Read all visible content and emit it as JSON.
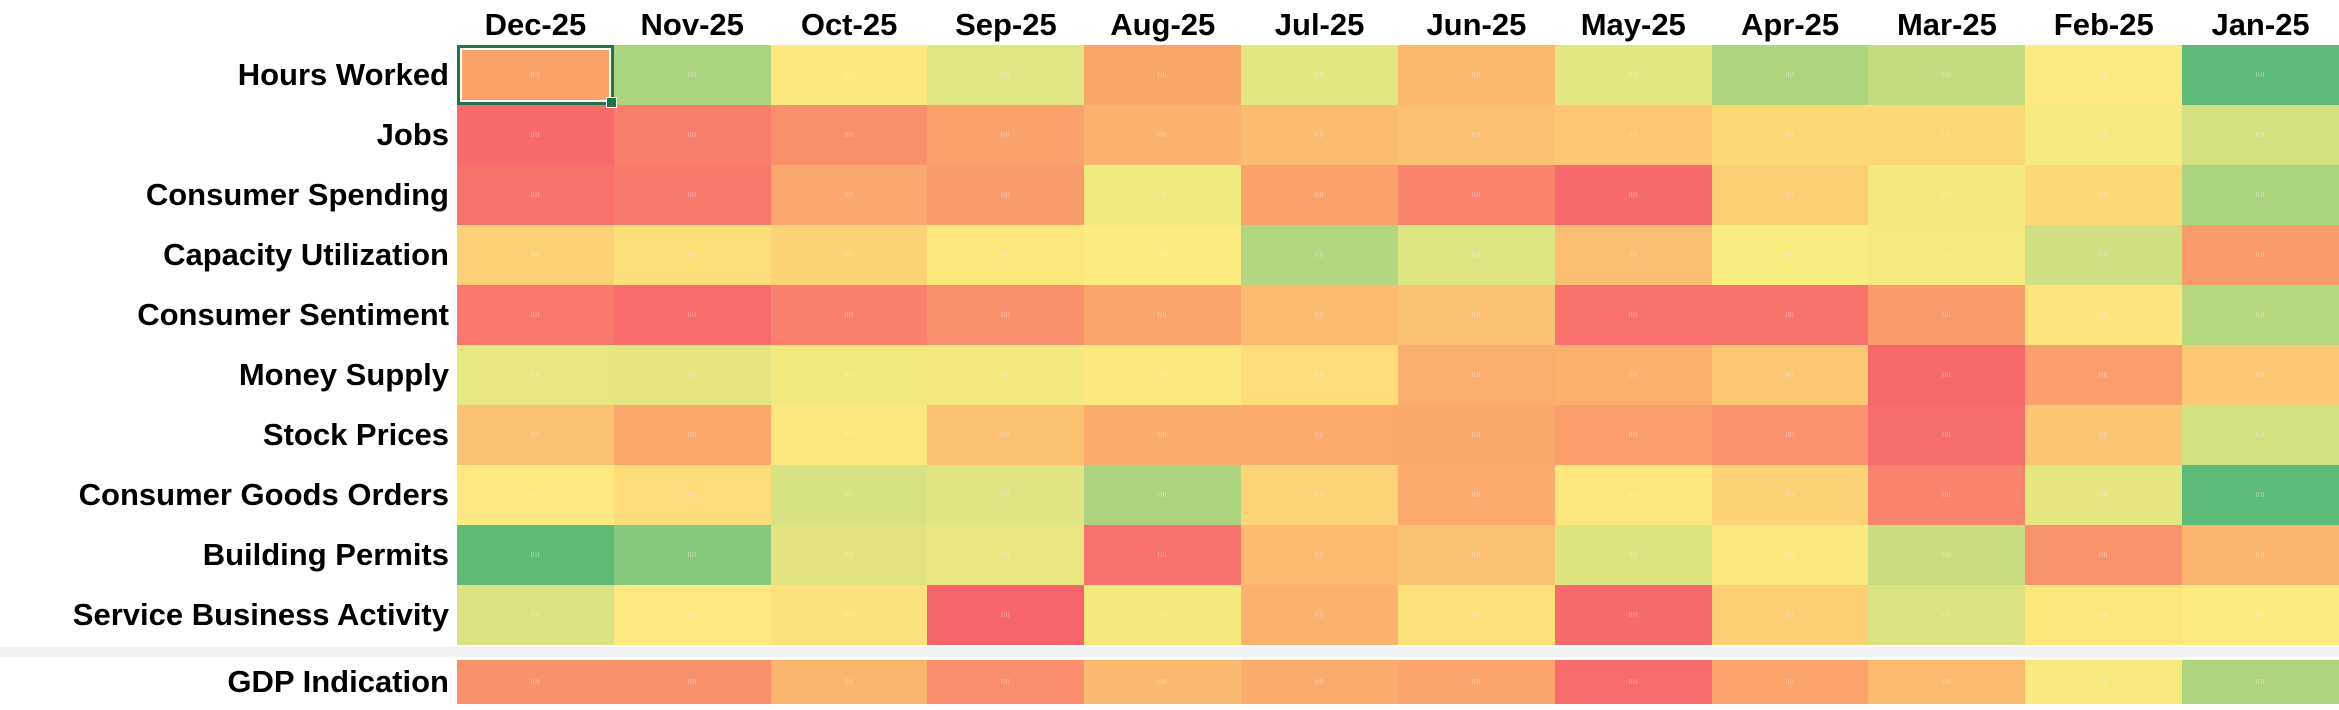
{
  "heatmap": {
    "columns": [
      "Dec-25",
      "Nov-25",
      "Oct-25",
      "Sep-25",
      "Aug-25",
      "Jul-25",
      "Jun-25",
      "May-25",
      "Apr-25",
      "Mar-25",
      "Feb-25",
      "Jan-25"
    ],
    "cell_mark": "||||",
    "separator_color": "#F1F1F1",
    "selection": {
      "row_label": "Hours Worked",
      "column_label": "Dec-25",
      "row_index": 0,
      "col_index": 0,
      "border_color": "#217346"
    },
    "rows": [
      {
        "label": "Hours Worked",
        "colors": [
          "#F9A369",
          "#ABD47E",
          "#FDE87E",
          "#E2E583",
          "#F9A669",
          "#E4E681",
          "#FBB86F",
          "#E3E681",
          "#AED57E",
          "#C4DC80",
          "#FDEA80",
          "#5EBB77"
        ]
      },
      {
        "label": "Jobs",
        "colors": [
          "#F7696B",
          "#F87E6C",
          "#F9906C",
          "#FAA26C",
          "#FBB26E",
          "#FBBB70",
          "#FBC071",
          "#FCC673",
          "#FDD976",
          "#FCD775",
          "#F7EA7E",
          "#D5E181"
        ]
      },
      {
        "label": "Consumer Spending",
        "colors": [
          "#F8726C",
          "#F87A6C",
          "#FAA86D",
          "#F99C6B",
          "#F0E97E",
          "#FAA26C",
          "#F9836C",
          "#F76A6B",
          "#FCCE74",
          "#F4E97E",
          "#FCD876",
          "#ABD47E"
        ]
      },
      {
        "label": "Capacity Utilization",
        "colors": [
          "#FCD176",
          "#FDDF7A",
          "#FCD276",
          "#FDE77D",
          "#FDEB80",
          "#B2D77F",
          "#DDE482",
          "#FBBD71",
          "#F9EC80",
          "#F6EA7E",
          "#CFDF81",
          "#FA9C6A"
        ]
      },
      {
        "label": "Consumer Sentiment",
        "colors": [
          "#F8786C",
          "#F76B6B",
          "#F8806C",
          "#F9906C",
          "#FAA56C",
          "#FBBC71",
          "#FBC172",
          "#F8716C",
          "#F8736C",
          "#FA9A6B",
          "#FDE47C",
          "#B6D87F"
        ]
      },
      {
        "label": "Money Supply",
        "colors": [
          "#E7E781",
          "#E6E681",
          "#F2E97E",
          "#F3E97E",
          "#FDE87E",
          "#FDDC79",
          "#FAAE6D",
          "#FBB06E",
          "#FCC673",
          "#F7686B",
          "#FA9F6B",
          "#FCC873"
        ]
      },
      {
        "label": "Stock Prices",
        "colors": [
          "#FBC172",
          "#FAA76C",
          "#FDE77D",
          "#FBC172",
          "#FAAC6D",
          "#FAAA6D",
          "#FAA96D",
          "#FA9F6B",
          "#F9926D",
          "#F76C6C",
          "#FCC573",
          "#D3E081"
        ]
      },
      {
        "label": "Consumer Goods Orders",
        "colors": [
          "#FDE97F",
          "#FDDC79",
          "#D9E282",
          "#E0E482",
          "#ACD47E",
          "#FCD376",
          "#FAAB6D",
          "#FDE77D",
          "#FCD276",
          "#F9836D",
          "#E5E681",
          "#5CBB76"
        ]
      },
      {
        "label": "Building Permits",
        "colors": [
          "#5DBB76",
          "#85C87B",
          "#E3E481",
          "#EAE780",
          "#F8716C",
          "#FBBA70",
          "#FBC172",
          "#DCE381",
          "#FDE87E",
          "#C8DD80",
          "#F9936C",
          "#FBB56F"
        ]
      },
      {
        "label": "Service Business Activity",
        "colors": [
          "#DBE281",
          "#FDE97F",
          "#FDE27B",
          "#F7656B",
          "#F3E97D",
          "#FBB26E",
          "#FDE07A",
          "#F76A6B",
          "#FCCF75",
          "#DBE281",
          "#FDE77D",
          "#FDEB7F"
        ]
      }
    ],
    "footer_row": {
      "label": "GDP Indication",
      "colors": [
        "#F9916C",
        "#F9906C",
        "#FBB46E",
        "#F98D6D",
        "#FBB870",
        "#FAAC6F",
        "#FAA56C",
        "#F76B6D",
        "#FAA46C",
        "#FBBA70",
        "#F8E97E",
        "#AED57E"
      ]
    }
  }
}
